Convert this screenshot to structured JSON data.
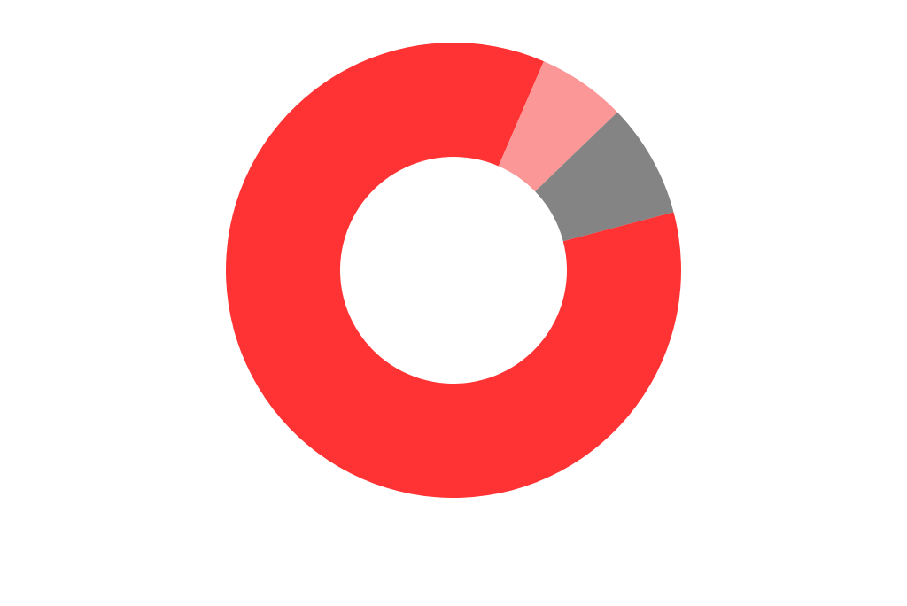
{
  "chart_data": {
    "type": "doughnut",
    "values": [
      85.6,
      6.3,
      8.1
    ],
    "colors": [
      "#ff3333",
      "#fc9797",
      "#848484"
    ]
  }
}
